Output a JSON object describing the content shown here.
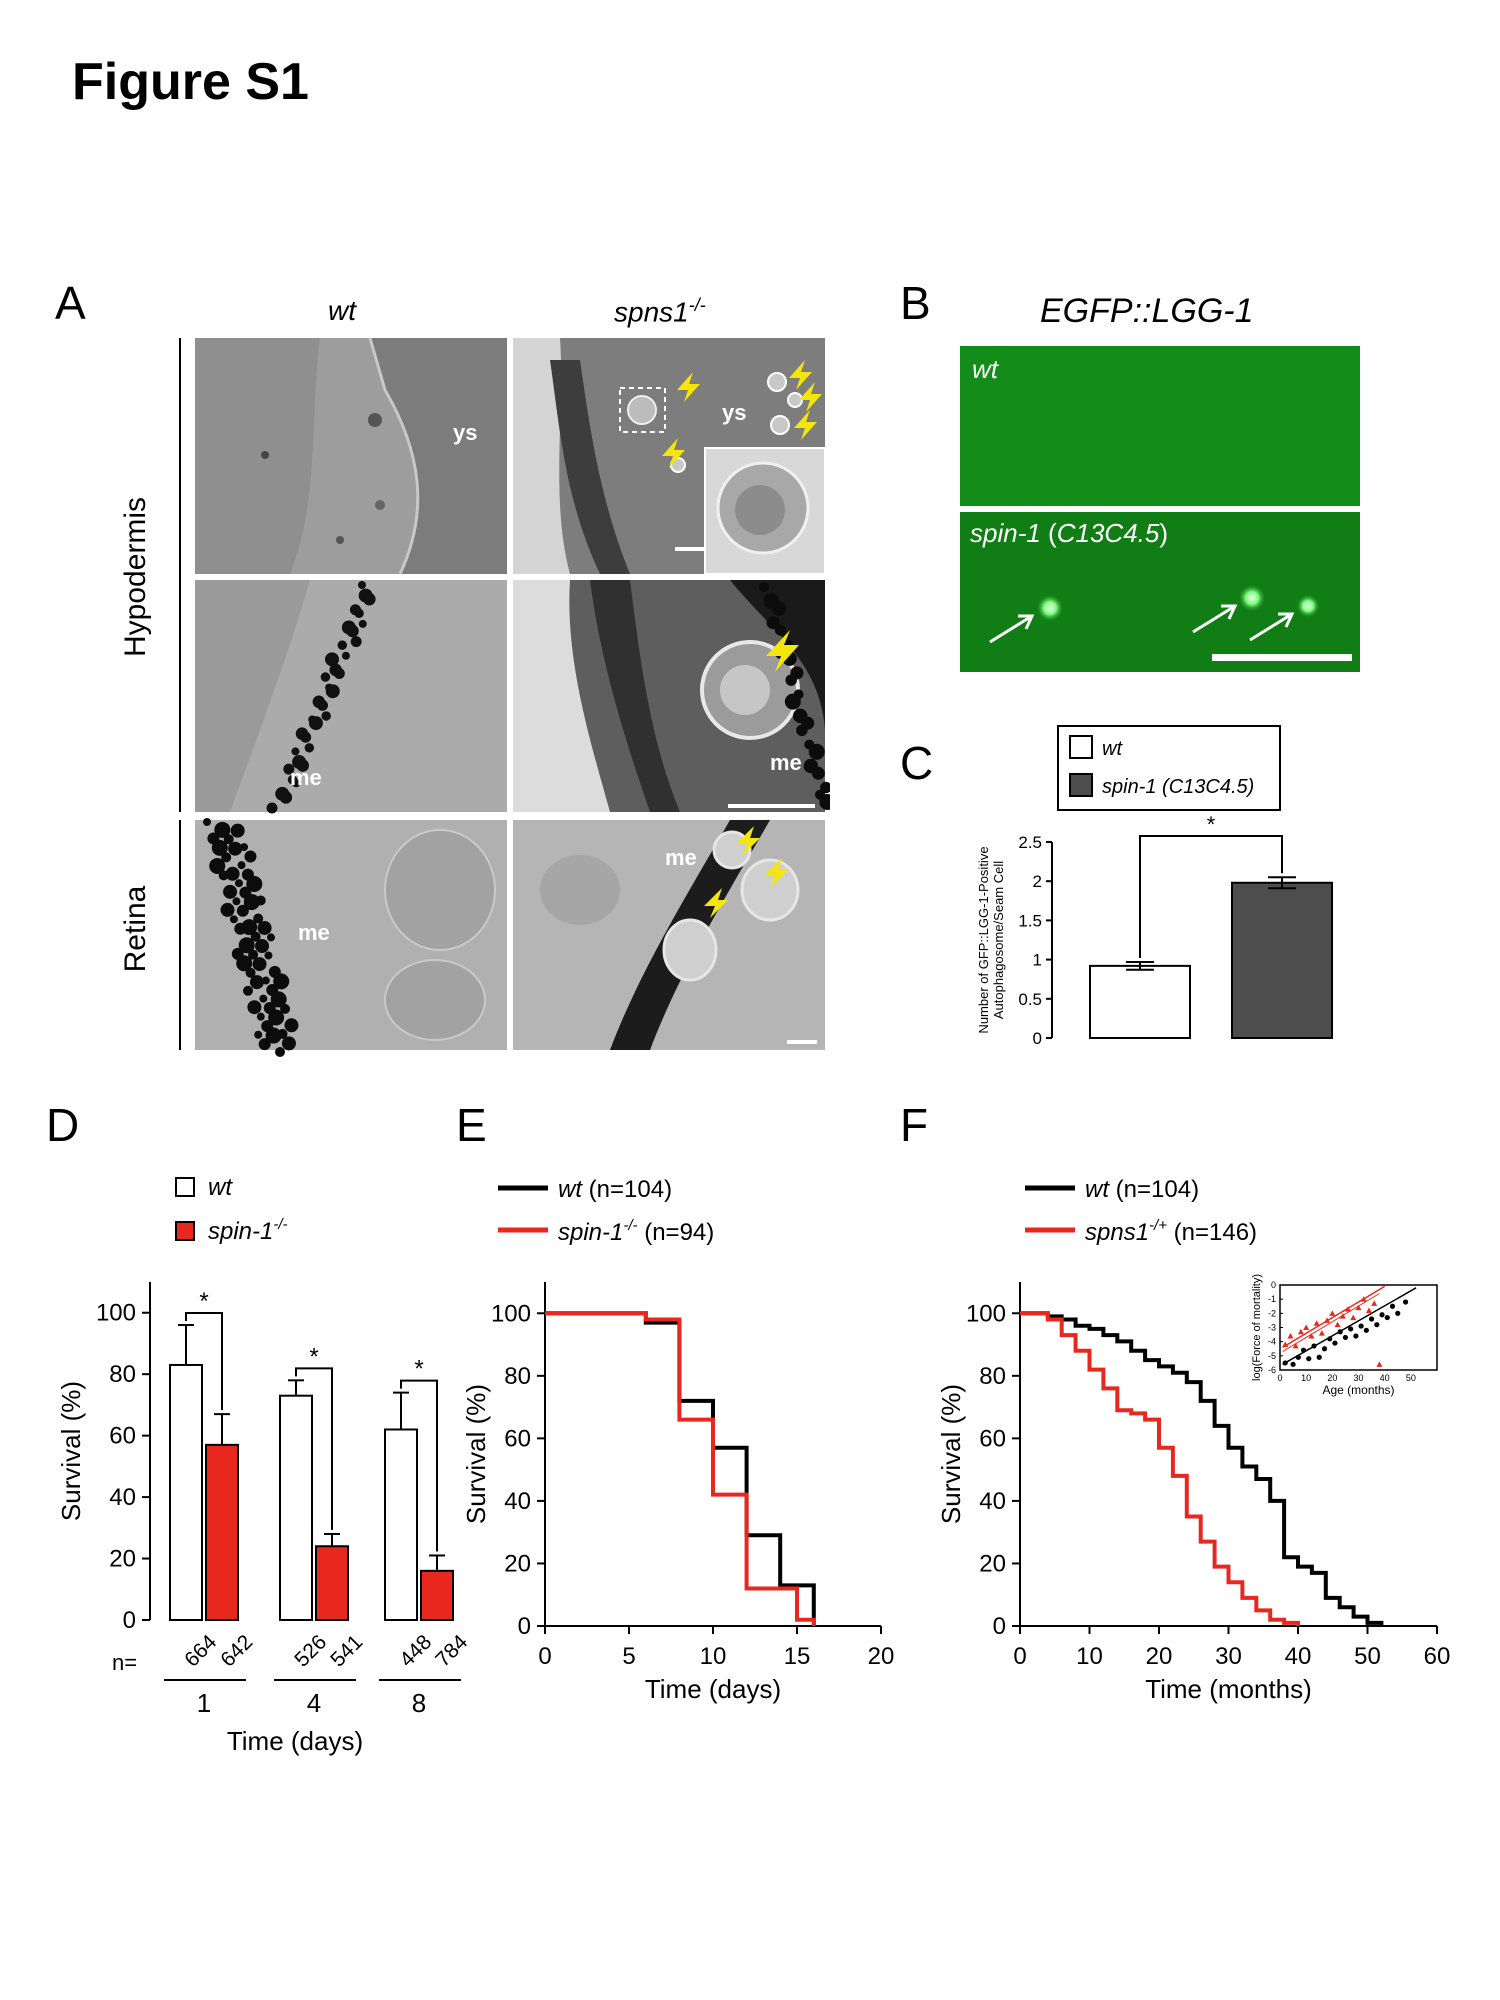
{
  "figure": {
    "title": "Figure S1"
  },
  "panelA": {
    "label": "A",
    "col_wt": "wt",
    "col_mut_base": "spns1",
    "col_mut_sup": "-/-",
    "row_hypodermis": "Hypodermis",
    "row_retina": "Retina",
    "tags": {
      "ys": "ys",
      "me": "me"
    }
  },
  "panelB": {
    "label": "B",
    "title": "EGFP::LGG-1",
    "top_label": "wt",
    "bottom_label_pre": "spin-1",
    "bottom_label_paren": "C13C4.5",
    "accent_color": "#0f8a12"
  },
  "panelC": {
    "label": "C",
    "legend": [
      "wt",
      "spin-1 (C13C4.5)"
    ],
    "ylabel_line1": "Number of GFP::LGG-1-Positive",
    "ylabel_line2": "Autophagosome/Seam Cell",
    "star": "*"
  },
  "panelD": {
    "label": "D",
    "legend_wt": "wt",
    "legend_mut_base": "spin-1",
    "legend_mut_sup": "-/-",
    "ylabel": "Survival (%)",
    "xlabel": "Time (days)",
    "n_prefix": "n=",
    "star": "*"
  },
  "panelE": {
    "label": "E",
    "legend_wt_name": "wt",
    "legend_wt_n": "(n=104)",
    "legend_mut_base": "spin-1",
    "legend_mut_sup": "-/-",
    "legend_mut_n": "(n=94)",
    "ylabel": "Survival (%)",
    "xlabel": "Time (days)"
  },
  "panelF": {
    "label": "F",
    "legend_wt_name": "wt",
    "legend_wt_n": "(n=104)",
    "legend_mut_base": "spns1",
    "legend_mut_sup": "-/+",
    "legend_mut_n": "(n=146)",
    "ylabel": "Survival (%)",
    "xlabel": "Time (months)",
    "inset_ylabel": "log(Force of mortality)",
    "inset_xlabel": "Age (months)"
  },
  "colors": {
    "wt": "#000000",
    "mutant": "#e8281e",
    "bar_c_mut": "#4d4d4d",
    "arrow_yellow": "#f5e60a"
  },
  "chart_data": [
    {
      "panel": "C",
      "type": "bar",
      "categories": [
        "wt",
        "spin-1 (C13C4.5)"
      ],
      "values": [
        0.92,
        1.98
      ],
      "errors": [
        0.05,
        0.07
      ],
      "ylim": [
        0,
        2.5
      ],
      "yticks": [
        "0",
        "0.5",
        "1",
        "1.5",
        "2",
        "2.5"
      ],
      "significance": "*"
    },
    {
      "panel": "D",
      "type": "bar",
      "categories": [
        "1",
        "4",
        "8"
      ],
      "series": [
        {
          "name": "wt",
          "values": [
            83,
            73,
            62
          ],
          "errors": [
            13,
            5,
            12
          ],
          "n": [
            "664",
            "526",
            "448"
          ]
        },
        {
          "name": "spin-1-/-",
          "values": [
            57,
            24,
            16
          ],
          "errors": [
            10,
            4,
            5
          ],
          "n": [
            "642",
            "541",
            "784"
          ]
        }
      ],
      "ylim": [
        0,
        100
      ],
      "yticks": [
        "0",
        "20",
        "40",
        "60",
        "80",
        "100"
      ],
      "significance": [
        "*",
        "*",
        "*"
      ]
    },
    {
      "panel": "E",
      "type": "line",
      "step": true,
      "series": [
        {
          "name": "wt (n=104)",
          "x": [
            0,
            6,
            8,
            10,
            12,
            14,
            16
          ],
          "y": [
            100,
            97,
            72,
            57,
            29,
            13,
            0
          ]
        },
        {
          "name": "spin-1-/- (n=94)",
          "x": [
            0,
            6,
            8,
            10,
            12,
            15,
            16
          ],
          "y": [
            100,
            98,
            66,
            42,
            12,
            2,
            0
          ]
        }
      ],
      "xlim": [
        0,
        20
      ],
      "ylim": [
        0,
        100
      ],
      "xticks": [
        "0",
        "5",
        "10",
        "15",
        "20"
      ],
      "yticks": [
        "0",
        "20",
        "40",
        "60",
        "80",
        "100"
      ]
    },
    {
      "panel": "F",
      "type": "line",
      "step": true,
      "series": [
        {
          "name": "wt (n=104)",
          "x": [
            0,
            4,
            6,
            8,
            10,
            12,
            14,
            16,
            18,
            20,
            22,
            24,
            26,
            28,
            30,
            32,
            34,
            36,
            38,
            40,
            42,
            44,
            46,
            48,
            50,
            52
          ],
          "y": [
            100,
            99,
            98,
            96,
            95,
            93,
            91,
            88,
            85,
            83,
            81,
            78,
            72,
            64,
            57,
            51,
            47,
            40,
            22,
            19,
            17,
            9,
            6,
            3,
            1,
            0
          ]
        },
        {
          "name": "spns1-/+ (n=146)",
          "x": [
            0,
            4,
            6,
            8,
            10,
            12,
            14,
            16,
            18,
            20,
            22,
            24,
            26,
            28,
            30,
            32,
            34,
            36,
            38,
            40
          ],
          "y": [
            100,
            98,
            93,
            88,
            82,
            76,
            69,
            68,
            66,
            57,
            48,
            35,
            27,
            19,
            14,
            9,
            5,
            2,
            1,
            0
          ]
        }
      ],
      "xlim": [
        0,
        60
      ],
      "ylim": [
        0,
        100
      ],
      "xticks": [
        "0",
        "10",
        "20",
        "30",
        "40",
        "50",
        "60"
      ],
      "yticks": [
        "0",
        "20",
        "40",
        "60",
        "80",
        "100"
      ]
    },
    {
      "panel": "F-inset",
      "type": "scatter",
      "series": [
        {
          "name": "wt",
          "x": [
            2,
            5,
            7,
            9,
            11,
            13,
            15,
            17,
            19,
            21,
            23,
            25,
            27,
            29,
            31,
            33,
            35,
            37,
            39,
            41,
            43,
            45,
            48
          ],
          "y": [
            -5.5,
            -5.6,
            -5.1,
            -4.6,
            -5.2,
            -4.3,
            -5.1,
            -4.5,
            -3.8,
            -4.1,
            -3.3,
            -3.7,
            -3.1,
            -3.6,
            -2.9,
            -3.2,
            -2.4,
            -2.8,
            -2.1,
            -2.3,
            -1.5,
            -2.0,
            -1.2
          ]
        },
        {
          "name": "spns1-/+",
          "x": [
            2,
            4,
            6,
            8,
            10,
            12,
            14,
            16,
            18,
            20,
            22,
            24,
            26,
            28,
            30,
            32,
            34,
            36,
            38
          ],
          "y": [
            -4.2,
            -3.6,
            -4.3,
            -3.3,
            -3.0,
            -3.6,
            -2.7,
            -3.4,
            -2.5,
            -2.0,
            -2.8,
            -2.2,
            -1.7,
            -2.3,
            -1.6,
            -1.0,
            -1.8,
            -1.3,
            -5.6
          ]
        }
      ],
      "xlim": [
        0,
        60
      ],
      "ylim": [
        -6,
        0
      ],
      "xticks": [
        "0",
        "10",
        "20",
        "30",
        "40",
        "50"
      ],
      "yticks": [
        "0",
        "-1",
        "-2",
        "-3",
        "-4",
        "-5",
        "-6"
      ]
    }
  ]
}
